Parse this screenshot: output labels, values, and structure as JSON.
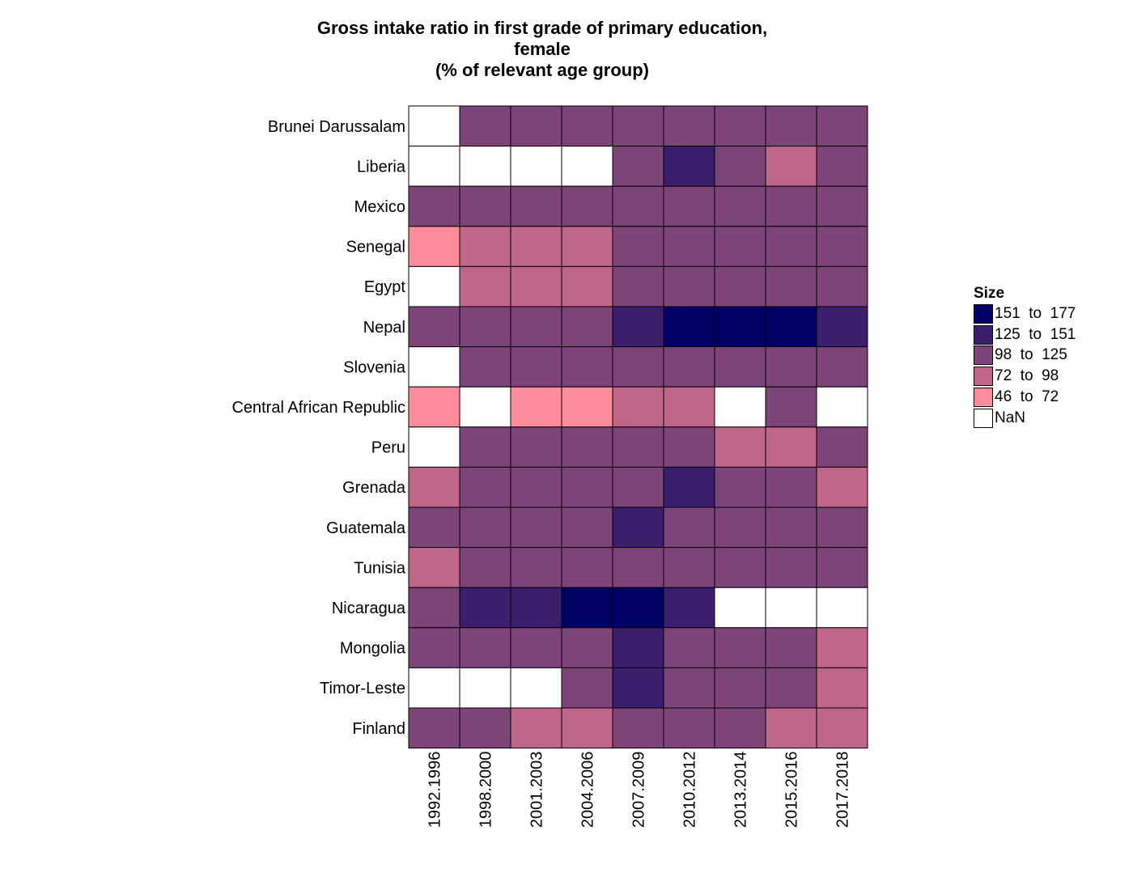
{
  "chart_data": {
    "type": "heatmap",
    "title": [
      "Gross intake ratio in first grade of primary education,",
      "female",
      "(% of relevant age group)"
    ],
    "x": [
      "1992.1996",
      "1998.2000",
      "2001.2003",
      "2004.2006",
      "2007.2009",
      "2010.2012",
      "2013.2014",
      "2015.2016",
      "2017.2018"
    ],
    "y": [
      "Brunei Darussalam",
      "Liberia",
      "Mexico",
      "Senegal",
      "Egypt",
      "Nepal",
      "Slovenia",
      "Central African Republic",
      "Peru",
      "Grenada",
      "Guatemala",
      "Tunisia",
      "Nicaragua",
      "Mongolia",
      "Timor-Leste",
      "Finland"
    ],
    "bins": [
      {
        "label": "151  to  177",
        "range": [
          151,
          177
        ],
        "color": "#000066"
      },
      {
        "label": "125  to  151",
        "range": [
          125,
          151
        ],
        "color": "#3b1e6e"
      },
      {
        "label": "98  to  125",
        "range": [
          98,
          125
        ],
        "color": "#7d4479"
      },
      {
        "label": "72  to  98",
        "range": [
          72,
          98
        ],
        "color": "#c0668b"
      },
      {
        "label": "46  to  72",
        "range": [
          46,
          72
        ],
        "color": "#ff8c9c"
      },
      {
        "label": "NaN",
        "range": null,
        "color": "#ffffff"
      }
    ],
    "cells": [
      [
        "NaN",
        "98  to  125",
        "98  to  125",
        "98  to  125",
        "98  to  125",
        "98  to  125",
        "98  to  125",
        "98  to  125",
        "98  to  125"
      ],
      [
        "NaN",
        "NaN",
        "NaN",
        "NaN",
        "98  to  125",
        "125  to  151",
        "98  to  125",
        "72  to  98",
        "98  to  125"
      ],
      [
        "98  to  125",
        "98  to  125",
        "98  to  125",
        "98  to  125",
        "98  to  125",
        "98  to  125",
        "98  to  125",
        "98  to  125",
        "98  to  125"
      ],
      [
        "46  to  72",
        "72  to  98",
        "72  to  98",
        "72  to  98",
        "98  to  125",
        "98  to  125",
        "98  to  125",
        "98  to  125",
        "98  to  125"
      ],
      [
        "NaN",
        "72  to  98",
        "72  to  98",
        "72  to  98",
        "98  to  125",
        "98  to  125",
        "98  to  125",
        "98  to  125",
        "98  to  125"
      ],
      [
        "98  to  125",
        "98  to  125",
        "98  to  125",
        "98  to  125",
        "125  to  151",
        "151  to  177",
        "151  to  177",
        "151  to  177",
        "125  to  151"
      ],
      [
        "NaN",
        "98  to  125",
        "98  to  125",
        "98  to  125",
        "98  to  125",
        "98  to  125",
        "98  to  125",
        "98  to  125",
        "98  to  125"
      ],
      [
        "46  to  72",
        "NaN",
        "46  to  72",
        "46  to  72",
        "72  to  98",
        "72  to  98",
        "NaN",
        "98  to  125",
        "NaN"
      ],
      [
        "NaN",
        "98  to  125",
        "98  to  125",
        "98  to  125",
        "98  to  125",
        "98  to  125",
        "72  to  98",
        "72  to  98",
        "98  to  125"
      ],
      [
        "72  to  98",
        "98  to  125",
        "98  to  125",
        "98  to  125",
        "98  to  125",
        "125  to  151",
        "98  to  125",
        "98  to  125",
        "72  to  98"
      ],
      [
        "98  to  125",
        "98  to  125",
        "98  to  125",
        "98  to  125",
        "125  to  151",
        "98  to  125",
        "98  to  125",
        "98  to  125",
        "98  to  125"
      ],
      [
        "72  to  98",
        "98  to  125",
        "98  to  125",
        "98  to  125",
        "98  to  125",
        "98  to  125",
        "98  to  125",
        "98  to  125",
        "98  to  125"
      ],
      [
        "98  to  125",
        "125  to  151",
        "125  to  151",
        "151  to  177",
        "151  to  177",
        "125  to  151",
        "NaN",
        "NaN",
        "NaN"
      ],
      [
        "98  to  125",
        "98  to  125",
        "98  to  125",
        "98  to  125",
        "125  to  151",
        "98  to  125",
        "98  to  125",
        "98  to  125",
        "72  to  98"
      ],
      [
        "NaN",
        "NaN",
        "NaN",
        "98  to  125",
        "125  to  151",
        "98  to  125",
        "98  to  125",
        "98  to  125",
        "72  to  98"
      ],
      [
        "98  to  125",
        "98  to  125",
        "72  to  98",
        "72  to  98",
        "98  to  125",
        "98  to  125",
        "98  to  125",
        "72  to  98",
        "72  to  98"
      ]
    ],
    "legend": {
      "title": "Size",
      "position": "right"
    },
    "grid": false
  }
}
